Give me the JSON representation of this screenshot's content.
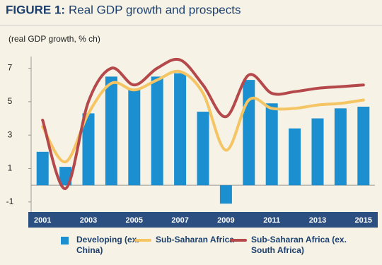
{
  "chart_data": {
    "type": "bar-line",
    "figure_label": "FIGURE 1:",
    "title": "Real GDP growth and prospects",
    "y_label": "(real GDP growth, % ch)",
    "categories": [
      "2001",
      null,
      "2003",
      null,
      "2005",
      null,
      "2007",
      null,
      "2009",
      null,
      "2011",
      null,
      "2013",
      null,
      "2015"
    ],
    "ylim": [
      -1.6,
      7.7
    ],
    "yticks": [
      -1,
      1,
      3,
      5,
      7
    ],
    "grid": false,
    "series": [
      {
        "name": "Developing (ex. China)",
        "type": "bar",
        "color": "#1b8fd0",
        "values": [
          2.0,
          1.1,
          4.3,
          6.5,
          5.7,
          6.5,
          6.7,
          4.4,
          -1.1,
          6.3,
          4.9,
          3.4,
          4.0,
          4.6,
          4.7
        ]
      },
      {
        "name": "Sub-Saharan Africa",
        "type": "line",
        "color": "#f5c463",
        "values": [
          3.5,
          1.4,
          4.3,
          6.1,
          5.7,
          6.3,
          6.8,
          5.5,
          2.1,
          5.1,
          4.6,
          4.6,
          4.8,
          4.9,
          5.1
        ]
      },
      {
        "name": "Sub-Saharan Africa (ex. South Africa)",
        "type": "line",
        "color": "#b5484a",
        "values": [
          3.9,
          -0.2,
          5.0,
          7.0,
          6.0,
          7.0,
          7.5,
          6.0,
          4.1,
          6.6,
          5.5,
          5.6,
          5.8,
          5.9,
          6.0
        ]
      }
    ]
  }
}
